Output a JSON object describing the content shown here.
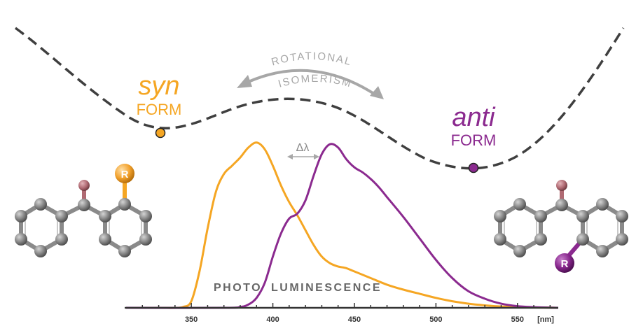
{
  "labels": {
    "syn_word": "syn",
    "syn_form": "FORM",
    "anti_word": "anti",
    "anti_form": "FORM",
    "rotational": "ROTATIONAL",
    "isomerism": "ISOMERISM",
    "delta_lambda": "Δλ",
    "photo": "PHOTO",
    "luminescence": "LUMINESCENCE",
    "r_left": "R",
    "r_right": "R"
  },
  "colors": {
    "syn": "#F5A623",
    "anti": "#8B2A8F",
    "curve": "#3f3f3f",
    "gray_text": "#a7a7a7",
    "axis": "#333333",
    "atom": "#808080",
    "oxygen": "#B46B74"
  },
  "chart_data": {
    "type": "line",
    "xlabel": "[nm]",
    "xlim": [
      310,
      575
    ],
    "ylim": [
      0,
      1.05
    ],
    "x_ticks": [
      350,
      400,
      450,
      500,
      550
    ],
    "x_tick_labels": [
      "350",
      "400",
      "450",
      "500",
      "550"
    ],
    "series": [
      {
        "color": "#F5A623",
        "x": [
          310,
          330,
          340,
          345,
          350,
          355,
          360,
          365,
          370,
          375,
          380,
          385,
          390,
          395,
          400,
          405,
          410,
          415,
          420,
          425,
          430,
          435,
          440,
          445,
          450,
          460,
          470,
          480,
          490,
          500,
          510,
          520,
          530,
          540,
          550,
          560,
          570,
          575
        ],
        "y": [
          0,
          0,
          0,
          0.005,
          0.04,
          0.22,
          0.48,
          0.7,
          0.81,
          0.86,
          0.91,
          0.97,
          1.0,
          0.96,
          0.86,
          0.74,
          0.64,
          0.56,
          0.47,
          0.38,
          0.31,
          0.27,
          0.25,
          0.24,
          0.22,
          0.18,
          0.14,
          0.11,
          0.085,
          0.06,
          0.04,
          0.025,
          0.015,
          0.008,
          0.004,
          0.002,
          0.001,
          0
        ]
      },
      {
        "color": "#8B2A8F",
        "x": [
          310,
          370,
          380,
          385,
          390,
          395,
          400,
          405,
          410,
          415,
          420,
          425,
          430,
          435,
          440,
          445,
          450,
          455,
          460,
          465,
          470,
          480,
          490,
          500,
          510,
          520,
          530,
          540,
          550,
          560,
          570,
          575
        ],
        "y": [
          0,
          0,
          0.005,
          0.02,
          0.06,
          0.15,
          0.31,
          0.45,
          0.54,
          0.57,
          0.65,
          0.8,
          0.93,
          0.99,
          0.97,
          0.9,
          0.85,
          0.82,
          0.78,
          0.73,
          0.67,
          0.55,
          0.42,
          0.29,
          0.18,
          0.1,
          0.055,
          0.025,
          0.01,
          0.004,
          0.001,
          0
        ]
      }
    ]
  }
}
